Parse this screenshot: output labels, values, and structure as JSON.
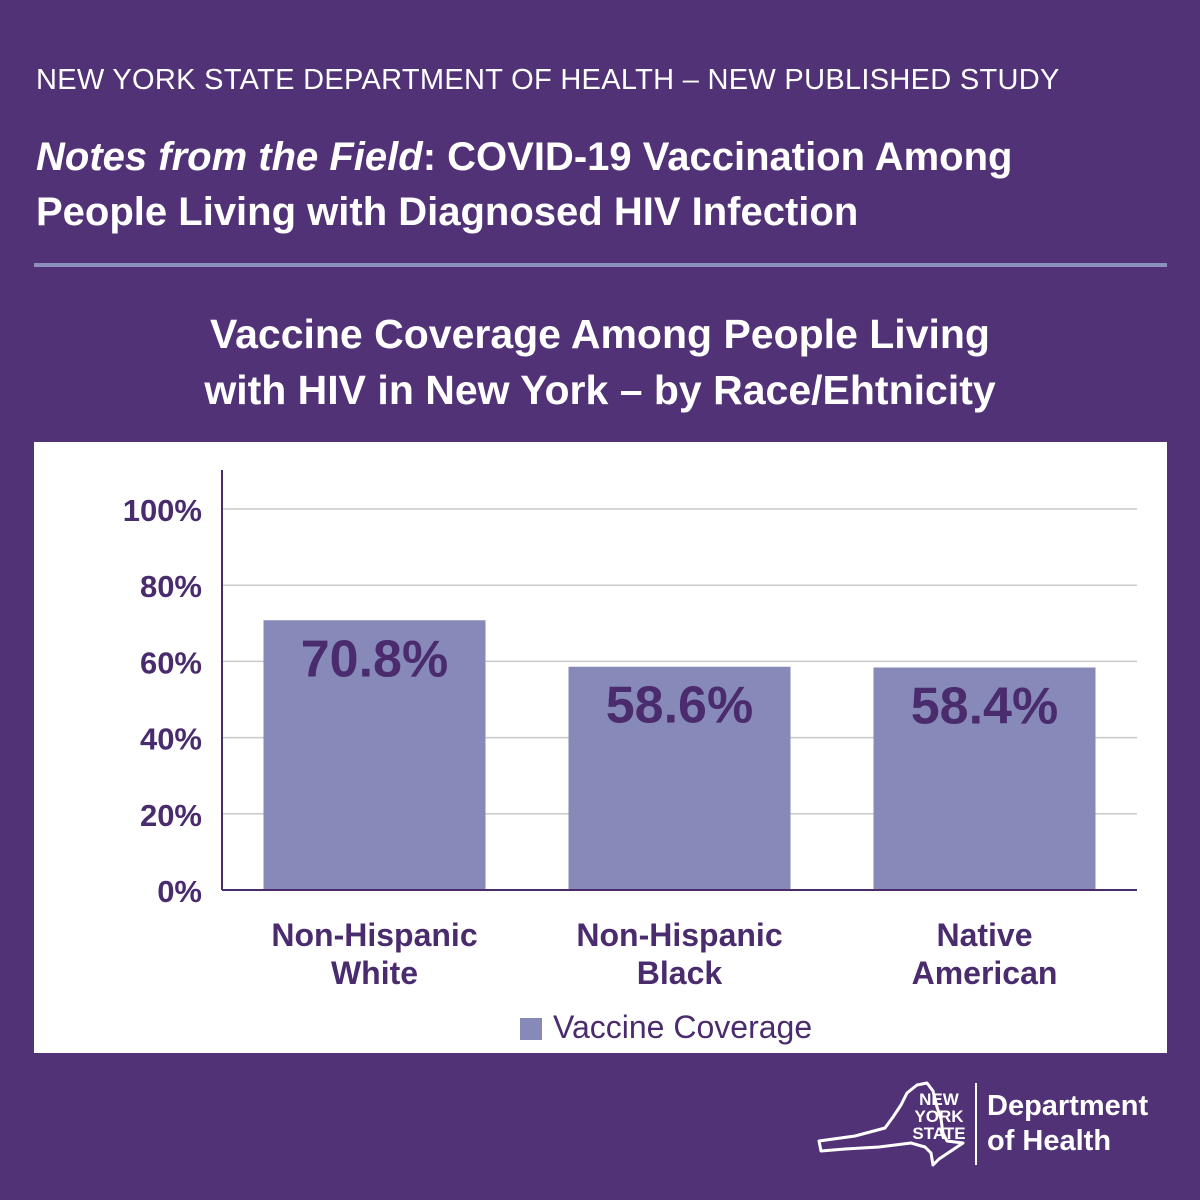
{
  "header": {
    "kicker": "NEW YORK STATE DEPARTMENT OF HEALTH – NEW PUBLISHED STUDY",
    "headline_italic": "Notes from the Field",
    "headline_line1_rest": ": COVID-19 Vaccination Among",
    "headline_line2": "People Living with Diagnosed HIV Infection"
  },
  "chart_title": {
    "line1": "Vaccine Coverage Among People Living",
    "line2": "with HIV in New York – by Race/Ehtnicity"
  },
  "colors": {
    "background": "#523277",
    "bar": "#878ab8",
    "text_dark": "#4a2c6e",
    "rule": "#8d8fbd"
  },
  "chart_data": {
    "type": "bar",
    "title": "Vaccine Coverage Among People Living with HIV in New York – by Race/Ehtnicity",
    "categories": [
      [
        "Non-Hispanic",
        "White"
      ],
      [
        "Non-Hispanic",
        "Black"
      ],
      [
        "Native",
        "American"
      ]
    ],
    "series": [
      {
        "name": "Vaccine Coverage",
        "values": [
          70.8,
          58.6,
          58.4
        ],
        "labels": [
          "70.8%",
          "58.6%",
          "58.4%"
        ]
      }
    ],
    "ylim": [
      0,
      100
    ],
    "yticks": [
      {
        "value": 0,
        "label": "0%"
      },
      {
        "value": 20,
        "label": "20%"
      },
      {
        "value": 40,
        "label": "40%"
      },
      {
        "value": 60,
        "label": "60%"
      },
      {
        "value": 80,
        "label": "80%"
      },
      {
        "value": 100,
        "label": "100%"
      }
    ],
    "grid": true,
    "legend": "bottom"
  },
  "logo": {
    "state_lines": [
      "NEW",
      "YORK",
      "STATE"
    ],
    "dept_lines": [
      "Department",
      "of Health"
    ],
    "icon": "new-york-state-outline-icon"
  }
}
